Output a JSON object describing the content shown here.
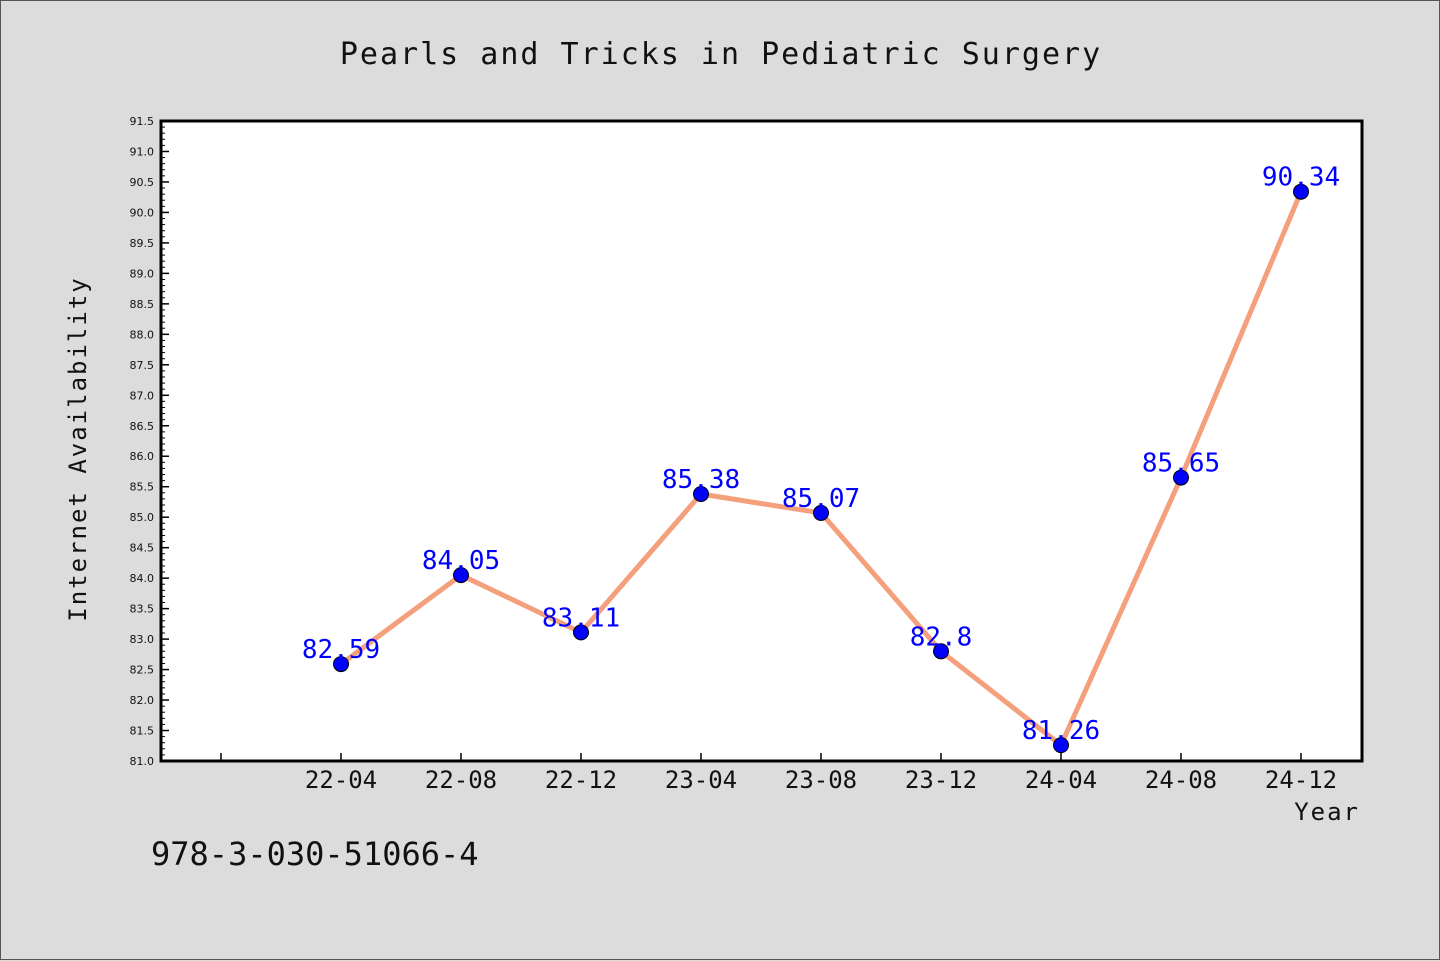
{
  "chart_data": {
    "type": "line",
    "title": "Pearls and Tricks in Pediatric Surgery",
    "xlabel": "Year",
    "ylabel": "Internet Availability",
    "categories": [
      "22-04",
      "22-08",
      "22-12",
      "23-04",
      "23-08",
      "23-12",
      "24-04",
      "24-08",
      "24-12"
    ],
    "series": [
      {
        "values": [
          82.59,
          84.05,
          83.11,
          85.38,
          85.07,
          82.8,
          81.26,
          85.65,
          90.34
        ]
      }
    ],
    "data_labels": [
      "82.59",
      "84.05",
      "83.11",
      "85.38",
      "85.07",
      "82.8",
      "81.26",
      "85.65",
      "90.34"
    ],
    "ylim": [
      81.0,
      91.5
    ],
    "yticks": [
      "81.0",
      "81.5",
      "82.0",
      "82.5",
      "83.0",
      "83.5",
      "84.0",
      "84.5",
      "85.0",
      "85.5",
      "86.0",
      "86.5",
      "87.0",
      "87.5",
      "88.0",
      "88.5",
      "89.0",
      "89.5",
      "90.0",
      "90.5",
      "91.0",
      "91.5"
    ],
    "grid": false,
    "colors": {
      "line": "#f4a07c",
      "marker": "#0000ff",
      "label": "#0000ff",
      "plot_bg": "#ffffff",
      "page_bg": "#dcdcdc"
    }
  },
  "footer": {
    "isbn": "978-3-030-51066-4"
  }
}
